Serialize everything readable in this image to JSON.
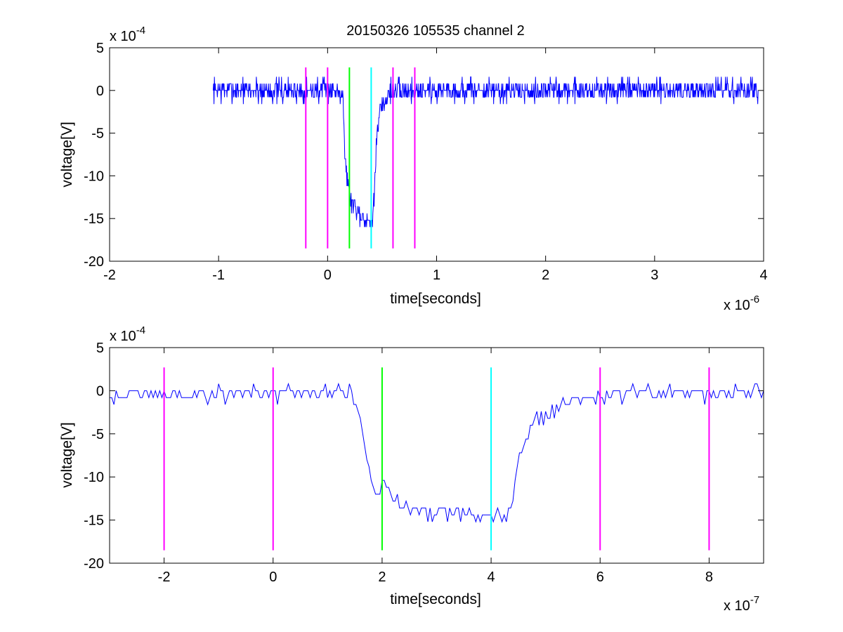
{
  "chart_data": [
    {
      "type": "line",
      "title": "20150326 105535 channel 2",
      "xlabel": "time[seconds]",
      "ylabel": "voltage[V]",
      "x_exponent_label": "x 10",
      "x_exponent": "-6",
      "y_exponent_label": "x 10",
      "y_exponent": "-4",
      "xlim": [
        -2,
        4
      ],
      "ylim": [
        -20,
        5
      ],
      "xticks": [
        "-2",
        "-1",
        "0",
        "1",
        "2",
        "3",
        "4"
      ],
      "yticks": [
        "5",
        "0",
        "-5",
        "-10",
        "-15",
        "-20"
      ],
      "signal_color": "#0000ff",
      "signal_profile": [
        [
          -1.05,
          0
        ],
        [
          0.14,
          0
        ],
        [
          0.16,
          -8
        ],
        [
          0.18,
          -10
        ],
        [
          0.2,
          -12.5
        ],
        [
          0.25,
          -13.5
        ],
        [
          0.3,
          -14.5
        ],
        [
          0.35,
          -15
        ],
        [
          0.4,
          -15.5
        ],
        [
          0.43,
          -12
        ],
        [
          0.45,
          -6
        ],
        [
          0.48,
          -2.5
        ],
        [
          0.55,
          -0.5
        ],
        [
          0.6,
          0
        ],
        [
          3.95,
          0
        ]
      ],
      "noise_amplitude": 1.4,
      "markers": [
        {
          "x": -0.2,
          "color": "#ff00ff"
        },
        {
          "x": 0.0,
          "color": "#ff00ff"
        },
        {
          "x": 0.2,
          "color": "#00ff00"
        },
        {
          "x": 0.4,
          "color": "#00ffff"
        },
        {
          "x": 0.6,
          "color": "#ff00ff"
        },
        {
          "x": 0.8,
          "color": "#ff00ff"
        }
      ],
      "marker_range": [
        -18.5,
        2.7
      ]
    },
    {
      "type": "line",
      "title": "",
      "xlabel": "time[seconds]",
      "ylabel": "voltage[V]",
      "x_exponent_label": "x 10",
      "x_exponent": "-7",
      "y_exponent_label": "x 10",
      "y_exponent": "-4",
      "xlim": [
        -3,
        9
      ],
      "ylim": [
        -20,
        5
      ],
      "xticks": [
        "-2",
        "0",
        "2",
        "4",
        "6",
        "8"
      ],
      "yticks": [
        "5",
        "0",
        "-5",
        "-10",
        "-15",
        "-20"
      ],
      "signal_color": "#0000ff",
      "signal_profile": [
        [
          -3,
          -0.7
        ],
        [
          -2.5,
          -0.3
        ],
        [
          -2,
          -0.5
        ],
        [
          1.4,
          0
        ],
        [
          1.6,
          -3
        ],
        [
          1.7,
          -8
        ],
        [
          1.8,
          -10
        ],
        [
          1.9,
          -12
        ],
        [
          2.0,
          -11
        ],
        [
          2.2,
          -12.5
        ],
        [
          2.6,
          -13.5
        ],
        [
          3.0,
          -14
        ],
        [
          3.5,
          -14
        ],
        [
          3.9,
          -15
        ],
        [
          4.0,
          -14.5
        ],
        [
          4.3,
          -14.5
        ],
        [
          4.4,
          -13
        ],
        [
          4.5,
          -8
        ],
        [
          4.6,
          -6
        ],
        [
          4.8,
          -3.5
        ],
        [
          5.2,
          -2
        ],
        [
          5.6,
          -1
        ],
        [
          6.0,
          -0.5
        ],
        [
          9.0,
          0
        ]
      ],
      "noise_amplitude": 1.0,
      "markers": [
        {
          "x": -2,
          "color": "#ff00ff"
        },
        {
          "x": 0,
          "color": "#ff00ff"
        },
        {
          "x": 2,
          "color": "#00ff00"
        },
        {
          "x": 4,
          "color": "#00ffff"
        },
        {
          "x": 6,
          "color": "#ff00ff"
        },
        {
          "x": 8,
          "color": "#ff00ff"
        }
      ],
      "marker_range": [
        -18.5,
        2.7
      ]
    }
  ]
}
